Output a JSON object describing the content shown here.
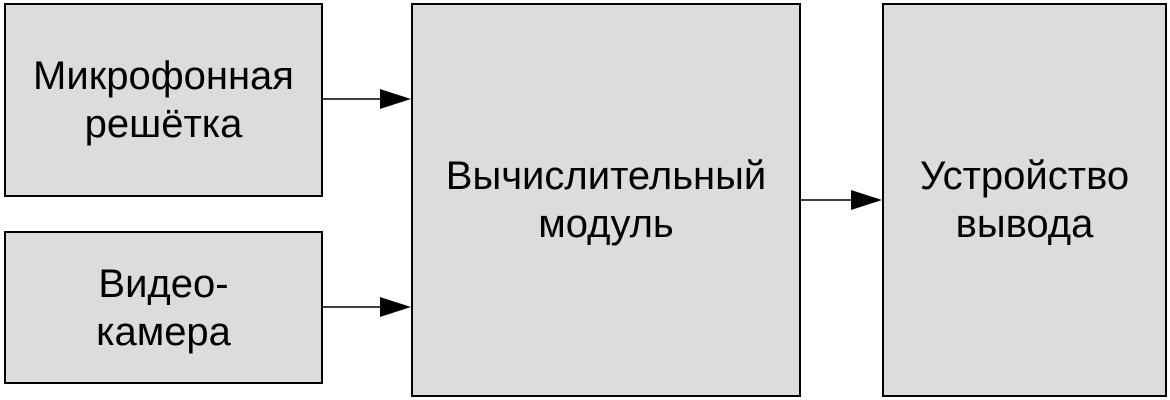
{
  "blocks": {
    "microphone_array": {
      "line1": "Микрофонная",
      "line2": "решётка"
    },
    "video_camera": {
      "line1": "Видео-",
      "line2": "камера"
    },
    "compute_module": {
      "line1": "Вычислительный",
      "line2": "модуль"
    },
    "output_device": {
      "line1": "Устройство",
      "line2": "вывода"
    }
  },
  "colors": {
    "block_fill": "#dcdcdc",
    "stroke": "#000000",
    "background": "#ffffff"
  }
}
